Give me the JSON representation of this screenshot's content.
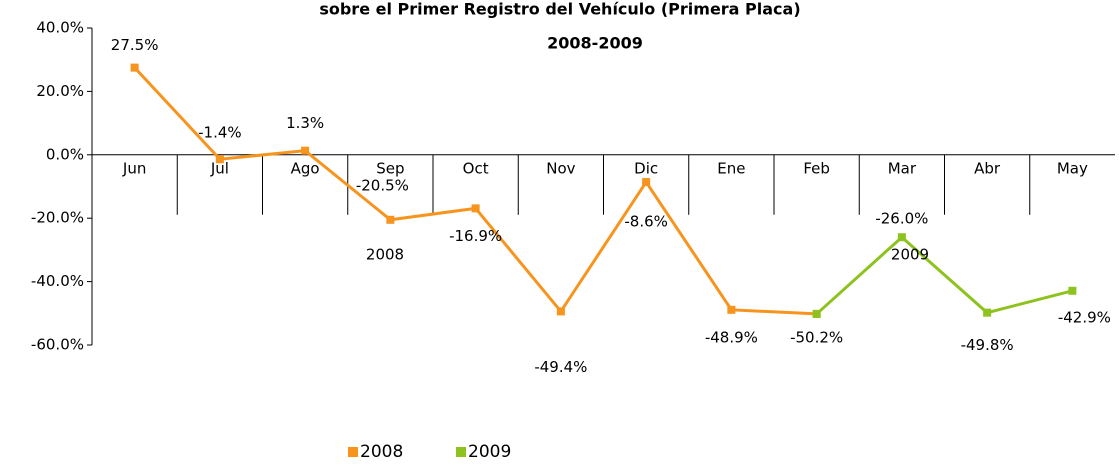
{
  "chart_data": {
    "type": "line",
    "title": "sobre el Primer Registro del Vehículo (Primera Placa)",
    "subtitle": "2008-2009",
    "categories": [
      "Jun",
      "Jul",
      "Ago",
      "Sep",
      "Oct",
      "Nov",
      "Dic",
      "Ene",
      "Feb",
      "Mar",
      "Abr",
      "May"
    ],
    "series": [
      {
        "name": "2008",
        "color": "#f7941d",
        "values": [
          27.5,
          -1.4,
          1.3,
          -20.5,
          -16.9,
          -49.4,
          -8.6,
          -48.9,
          -50.2,
          null,
          null,
          null
        ],
        "value_labels": [
          "27.5%",
          "-1.4%",
          "1.3%",
          "-20.5%",
          "-16.9%",
          "-49.4%",
          "-8.6%",
          "-48.9%",
          "-50.2%",
          null,
          null,
          null
        ]
      },
      {
        "name": "2009",
        "color": "#8dc21f",
        "values": [
          null,
          null,
          null,
          null,
          null,
          null,
          null,
          null,
          -50.2,
          -26.0,
          -49.8,
          -42.9
        ],
        "value_labels": [
          null,
          null,
          null,
          null,
          null,
          null,
          null,
          null,
          null,
          "-26.0%",
          "-49.8%",
          "-42.9%"
        ]
      }
    ],
    "annotations": [
      "2008",
      "2009"
    ],
    "ylim": [
      -60,
      40
    ],
    "yticks": [
      {
        "value": -60,
        "label": "-60.0%"
      },
      {
        "value": -40,
        "label": "-40.0%"
      },
      {
        "value": -20,
        "label": "-20.0%"
      },
      {
        "value": 0,
        "label": "0.0%"
      },
      {
        "value": 20,
        "label": "20.0%"
      },
      {
        "value": 40,
        "label": "40.0%"
      }
    ],
    "legend": "bottom"
  }
}
